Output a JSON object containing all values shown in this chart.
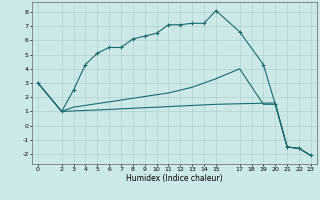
{
  "title": "",
  "xlabel": "Humidex (Indice chaleur)",
  "background_color": "#cce8e8",
  "grid_color": "#aacccc",
  "line_color": "#1a6b6b",
  "line1_x": [
    0,
    2,
    3,
    4,
    5,
    6,
    7,
    8,
    9,
    10,
    11,
    12,
    13,
    14,
    15,
    17,
    19,
    20,
    21,
    22,
    23
  ],
  "line1_y": [
    3.0,
    1.0,
    2.5,
    4.3,
    5.1,
    5.5,
    5.5,
    6.1,
    6.3,
    6.5,
    7.1,
    7.1,
    7.2,
    7.2,
    8.1,
    6.6,
    4.3,
    1.5,
    -1.5,
    -1.6,
    -2.1
  ],
  "line2_x": [
    0,
    2,
    3,
    5,
    7,
    9,
    11,
    13,
    15,
    17,
    19,
    20,
    21,
    22,
    23
  ],
  "line2_y": [
    3.0,
    1.0,
    1.3,
    1.55,
    1.8,
    2.05,
    2.3,
    2.7,
    3.3,
    4.0,
    1.5,
    1.5,
    -1.5,
    -1.6,
    -2.1
  ],
  "line3_x": [
    0,
    2,
    5,
    10,
    15,
    20,
    21,
    22,
    23
  ],
  "line3_y": [
    3.0,
    1.0,
    1.1,
    1.3,
    1.5,
    1.6,
    -1.5,
    -1.6,
    -2.1
  ],
  "xlim": [
    -0.5,
    23.5
  ],
  "ylim": [
    -2.7,
    8.7
  ],
  "xticks": [
    0,
    2,
    3,
    4,
    5,
    6,
    7,
    8,
    9,
    10,
    11,
    12,
    13,
    14,
    15,
    17,
    18,
    19,
    20,
    21,
    22,
    23
  ],
  "yticks": [
    -2,
    -1,
    0,
    1,
    2,
    3,
    4,
    5,
    6,
    7,
    8
  ]
}
